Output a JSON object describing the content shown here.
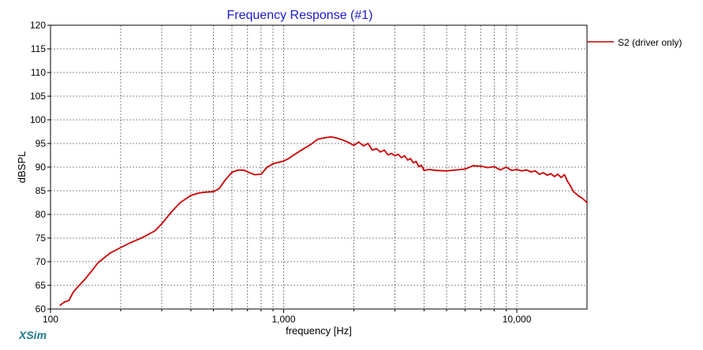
{
  "brand": {
    "label": "XSim",
    "color": "#1f7a8c"
  },
  "colors": {
    "title": "#1a1acc",
    "series": "#cc0000",
    "grid": "#606060"
  },
  "chart_data": {
    "type": "line",
    "title": "Frequency Response (#1)",
    "xlabel": "frequency [Hz]",
    "ylabel": "dBSPL",
    "x_scale": "log",
    "xlim": [
      100,
      20000
    ],
    "ylim": [
      60,
      120
    ],
    "y_ticks": [
      60,
      65,
      70,
      75,
      80,
      85,
      90,
      95,
      100,
      105,
      110,
      115,
      120
    ],
    "y_tick_labels": [
      "60",
      "65",
      "70",
      "75",
      "80",
      "85",
      "90",
      "95",
      "100",
      "105",
      "110",
      "115",
      "120"
    ],
    "x_major_ticks": [
      100,
      1000,
      10000
    ],
    "x_major_tick_labels": [
      "100",
      "1,000",
      "10,000"
    ],
    "x_minor_gridlines": [
      200,
      300,
      400,
      500,
      600,
      700,
      800,
      900,
      2000,
      3000,
      4000,
      5000,
      6000,
      7000,
      8000,
      9000
    ],
    "grid": true,
    "legend_position": "right",
    "series": [
      {
        "name": "S2 (driver only)",
        "x": [
          110,
          115,
          120,
          125,
          130,
          140,
          150,
          160,
          180,
          200,
          220,
          250,
          280,
          300,
          330,
          360,
          400,
          430,
          460,
          500,
          530,
          560,
          600,
          630,
          650,
          680,
          700,
          750,
          800,
          850,
          900,
          950,
          1000,
          1050,
          1100,
          1200,
          1300,
          1400,
          1500,
          1600,
          1700,
          1800,
          1900,
          2000,
          2100,
          2200,
          2300,
          2400,
          2500,
          2600,
          2700,
          2800,
          2900,
          3000,
          3100,
          3200,
          3300,
          3400,
          3500,
          3600,
          3700,
          3800,
          3900,
          4000,
          4200,
          4500,
          5000,
          5500,
          6000,
          6500,
          7000,
          7500,
          8000,
          8500,
          9000,
          9500,
          10000,
          10500,
          11000,
          11500,
          12000,
          12500,
          13000,
          13500,
          14000,
          14500,
          15000,
          15500,
          16000,
          16500,
          17000,
          17500,
          18000,
          18500,
          19000,
          19500,
          20000
        ],
        "y": [
          60.8,
          61.5,
          61.8,
          63.5,
          64.5,
          66.2,
          68.0,
          69.8,
          71.8,
          73.0,
          74.0,
          75.2,
          76.5,
          78.0,
          80.5,
          82.5,
          84.0,
          84.5,
          84.7,
          84.8,
          85.5,
          87.2,
          88.9,
          89.3,
          89.4,
          89.3,
          89.0,
          88.4,
          88.5,
          90.0,
          90.7,
          91.0,
          91.3,
          91.8,
          92.5,
          93.7,
          94.7,
          95.9,
          96.2,
          96.4,
          96.1,
          95.7,
          95.2,
          94.6,
          95.3,
          94.5,
          95.0,
          93.6,
          93.9,
          93.2,
          93.6,
          92.6,
          92.9,
          92.4,
          92.7,
          92.0,
          92.4,
          91.5,
          91.8,
          90.9,
          91.2,
          90.1,
          90.4,
          89.3,
          89.5,
          89.3,
          89.2,
          89.4,
          89.6,
          90.3,
          90.2,
          89.9,
          90.1,
          89.4,
          90.0,
          89.3,
          89.5,
          89.2,
          89.4,
          89.0,
          89.2,
          88.5,
          88.8,
          88.3,
          88.6,
          88.0,
          88.5,
          87.8,
          88.4,
          87.0,
          86.0,
          84.8,
          84.3,
          83.8,
          83.5,
          83.0,
          82.5
        ]
      }
    ]
  }
}
